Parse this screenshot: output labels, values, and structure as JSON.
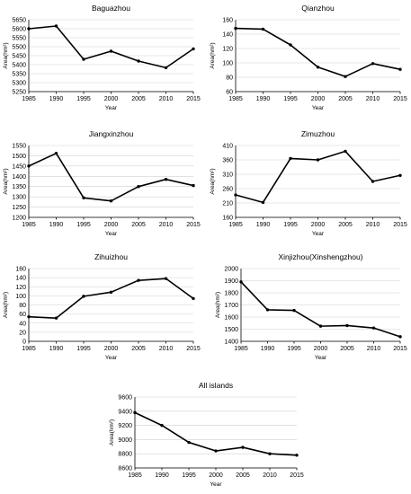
{
  "chart_data": [
    {
      "type": "line",
      "title": "Baguazhou",
      "xlabel": "Year",
      "ylabel": "Area(hm²)",
      "x": [
        1985,
        1990,
        1995,
        2000,
        2005,
        2010,
        2015
      ],
      "values": [
        5600,
        5615,
        5430,
        5475,
        5420,
        5383,
        5488
      ],
      "ylim": [
        5250,
        5650
      ],
      "yticks": [
        5250,
        5300,
        5350,
        5400,
        5450,
        5500,
        5550,
        5600,
        5650
      ],
      "grid": true
    },
    {
      "type": "line",
      "title": "Qianzhou",
      "xlabel": "Year",
      "ylabel": "Area(hm²)",
      "x": [
        1985,
        1990,
        1995,
        2000,
        2005,
        2010,
        2015
      ],
      "values": [
        148,
        147,
        125,
        94,
        81,
        99,
        91
      ],
      "ylim": [
        60,
        160
      ],
      "yticks": [
        60,
        80,
        100,
        120,
        140,
        160
      ],
      "grid": true
    },
    {
      "type": "line",
      "title": "Jiangxinzhou",
      "xlabel": "Year",
      "ylabel": "Area(hm²)",
      "x": [
        1985,
        1990,
        1995,
        2000,
        2005,
        2010,
        2015
      ],
      "values": [
        1450,
        1512,
        1295,
        1280,
        1350,
        1385,
        1355
      ],
      "ylim": [
        1200,
        1550
      ],
      "yticks": [
        1200,
        1250,
        1300,
        1350,
        1400,
        1450,
        1500,
        1550
      ],
      "grid": true
    },
    {
      "type": "line",
      "title": "Zimuzhou",
      "xlabel": "Year",
      "ylabel": "Area(hm²)",
      "x": [
        1985,
        1990,
        1995,
        2000,
        2005,
        2010,
        2015
      ],
      "values": [
        238,
        212,
        365,
        360,
        390,
        285,
        306
      ],
      "ylim": [
        160,
        410
      ],
      "yticks": [
        160,
        210,
        260,
        310,
        360,
        410
      ],
      "grid": true
    },
    {
      "type": "line",
      "title": "Zihuizhou",
      "xlabel": "Year",
      "ylabel": "Area(hm²)",
      "x": [
        1985,
        1990,
        1995,
        2000,
        2005,
        2010,
        2015
      ],
      "values": [
        54,
        51,
        99,
        108,
        134,
        138,
        94
      ],
      "ylim": [
        0,
        160
      ],
      "yticks": [
        0,
        20,
        40,
        60,
        80,
        100,
        120,
        140,
        160
      ],
      "grid": true
    },
    {
      "type": "line",
      "title": "Xinjizhou(Xinshengzhou)",
      "xlabel": "Year",
      "ylabel": "Area(hm²)",
      "x": [
        1985,
        1990,
        1995,
        2000,
        2005,
        2010,
        2015
      ],
      "values": [
        1890,
        1660,
        1655,
        1525,
        1530,
        1510,
        1438
      ],
      "ylim": [
        1400,
        2000
      ],
      "yticks": [
        1400,
        1500,
        1600,
        1700,
        1800,
        1900,
        2000
      ],
      "grid": true
    },
    {
      "type": "line",
      "title": "All islands",
      "xlabel": "Year",
      "ylabel": "Area(hm²)",
      "x": [
        1985,
        1990,
        1995,
        2000,
        2005,
        2010,
        2015
      ],
      "values": [
        9380,
        9200,
        8960,
        8840,
        8890,
        8800,
        8780
      ],
      "ylim": [
        8600,
        9600
      ],
      "yticks": [
        8600,
        8800,
        9000,
        9200,
        9400,
        9600
      ],
      "grid": true
    }
  ]
}
